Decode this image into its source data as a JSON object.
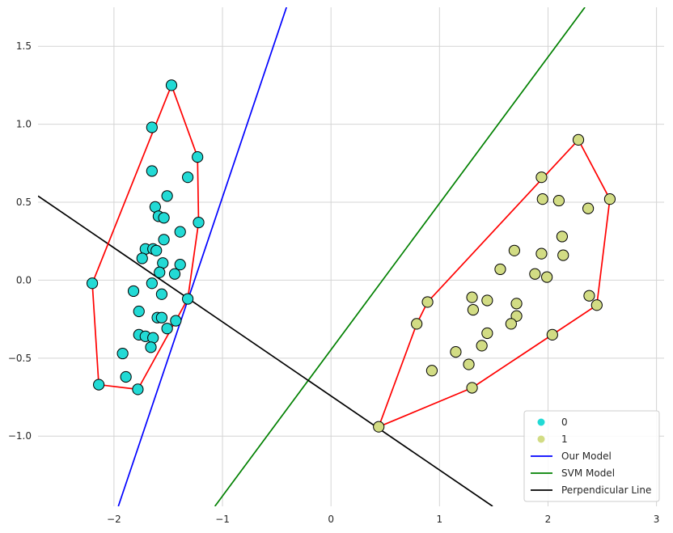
{
  "chart_data": {
    "type": "scatter",
    "title": "",
    "xlabel": "",
    "ylabel": "",
    "xlim": [
      -2.7,
      3.07
    ],
    "ylim": [
      -1.45,
      1.75
    ],
    "xticks": [
      -2,
      -1,
      0,
      1,
      2,
      3
    ],
    "yticks": [
      -1.0,
      -0.5,
      0.0,
      0.5,
      1.0,
      1.5
    ],
    "xtick_labels": [
      "−2",
      "−1",
      "0",
      "1",
      "2",
      "3"
    ],
    "ytick_labels": [
      "−1.0",
      "−0.5",
      "0.0",
      "0.5",
      "1.0",
      "1.5"
    ],
    "grid": true,
    "legend_position": "lower-right",
    "colors": {
      "class0": "#22dad5",
      "class1": "#d2dc84",
      "hull": "#ff0000",
      "our_model": "#0000ff",
      "svm_model": "#008000",
      "perpendicular": "#000000",
      "grid": "#d4d4d4"
    },
    "scatter_series": [
      {
        "name": "0",
        "points": [
          [
            -1.47,
            1.25
          ],
          [
            -1.65,
            0.98
          ],
          [
            -1.23,
            0.79
          ],
          [
            -1.65,
            0.7
          ],
          [
            -1.32,
            0.66
          ],
          [
            -1.51,
            0.54
          ],
          [
            -1.62,
            0.47
          ],
          [
            -1.59,
            0.41
          ],
          [
            -1.54,
            0.4
          ],
          [
            -1.22,
            0.37
          ],
          [
            -1.39,
            0.31
          ],
          [
            -1.54,
            0.26
          ],
          [
            -1.71,
            0.2
          ],
          [
            -1.64,
            0.2
          ],
          [
            -1.61,
            0.19
          ],
          [
            -1.74,
            0.14
          ],
          [
            -1.55,
            0.11
          ],
          [
            -1.39,
            0.1
          ],
          [
            -1.58,
            0.05
          ],
          [
            -1.44,
            0.04
          ],
          [
            -2.2,
            -0.02
          ],
          [
            -1.65,
            -0.02
          ],
          [
            -1.82,
            -0.07
          ],
          [
            -1.56,
            -0.09
          ],
          [
            -1.32,
            -0.12
          ],
          [
            -1.77,
            -0.2
          ],
          [
            -1.6,
            -0.24
          ],
          [
            -1.56,
            -0.24
          ],
          [
            -1.43,
            -0.26
          ],
          [
            -1.51,
            -0.31
          ],
          [
            -1.77,
            -0.35
          ],
          [
            -1.71,
            -0.36
          ],
          [
            -1.64,
            -0.37
          ],
          [
            -1.66,
            -0.43
          ],
          [
            -1.92,
            -0.47
          ],
          [
            -1.89,
            -0.62
          ],
          [
            -2.14,
            -0.67
          ],
          [
            -1.78,
            -0.7
          ]
        ]
      },
      {
        "name": "1",
        "points": [
          [
            2.28,
            0.9
          ],
          [
            1.94,
            0.66
          ],
          [
            2.57,
            0.52
          ],
          [
            1.95,
            0.52
          ],
          [
            2.1,
            0.51
          ],
          [
            2.37,
            0.46
          ],
          [
            2.13,
            0.28
          ],
          [
            1.69,
            0.19
          ],
          [
            1.94,
            0.17
          ],
          [
            2.14,
            0.16
          ],
          [
            1.56,
            0.07
          ],
          [
            1.88,
            0.04
          ],
          [
            1.99,
            0.02
          ],
          [
            2.38,
            -0.1
          ],
          [
            1.3,
            -0.11
          ],
          [
            1.44,
            -0.13
          ],
          [
            0.89,
            -0.14
          ],
          [
            1.71,
            -0.15
          ],
          [
            2.45,
            -0.16
          ],
          [
            1.31,
            -0.19
          ],
          [
            1.71,
            -0.23
          ],
          [
            1.66,
            -0.28
          ],
          [
            0.79,
            -0.28
          ],
          [
            1.44,
            -0.34
          ],
          [
            2.04,
            -0.35
          ],
          [
            1.39,
            -0.42
          ],
          [
            1.15,
            -0.46
          ],
          [
            1.27,
            -0.54
          ],
          [
            0.93,
            -0.58
          ],
          [
            1.3,
            -0.69
          ],
          [
            0.44,
            -0.94
          ]
        ]
      }
    ],
    "hulls": [
      [
        [
          -1.47,
          1.25
        ],
        [
          -1.23,
          0.79
        ],
        [
          -1.22,
          0.37
        ],
        [
          -1.32,
          -0.12
        ],
        [
          -1.78,
          -0.7
        ],
        [
          -2.14,
          -0.67
        ],
        [
          -2.2,
          -0.02
        ],
        [
          -1.47,
          1.25
        ]
      ],
      [
        [
          2.28,
          0.9
        ],
        [
          2.57,
          0.52
        ],
        [
          2.45,
          -0.16
        ],
        [
          1.3,
          -0.69
        ],
        [
          0.44,
          -0.94
        ],
        [
          0.79,
          -0.28
        ],
        [
          0.89,
          -0.14
        ],
        [
          2.28,
          0.9
        ]
      ]
    ],
    "lines": [
      {
        "name": "Our Model",
        "points": [
          [
            -1.96,
            -1.45
          ],
          [
            -0.41,
            1.75
          ]
        ]
      },
      {
        "name": "SVM Model",
        "points": [
          [
            -1.07,
            -1.45
          ],
          [
            2.34,
            1.75
          ]
        ]
      },
      {
        "name": "Perpendicular Line",
        "points": [
          [
            -2.7,
            0.54
          ],
          [
            1.49,
            -1.45
          ]
        ]
      }
    ],
    "legend": [
      {
        "label": "0",
        "kind": "marker",
        "color": "#22dad5"
      },
      {
        "label": "1",
        "kind": "marker",
        "color": "#d2dc84"
      },
      {
        "label": "Our Model",
        "kind": "line",
        "color": "#0000ff"
      },
      {
        "label": "SVM Model",
        "kind": "line",
        "color": "#008000"
      },
      {
        "label": "Perpendicular Line",
        "kind": "line",
        "color": "#000000"
      }
    ]
  }
}
